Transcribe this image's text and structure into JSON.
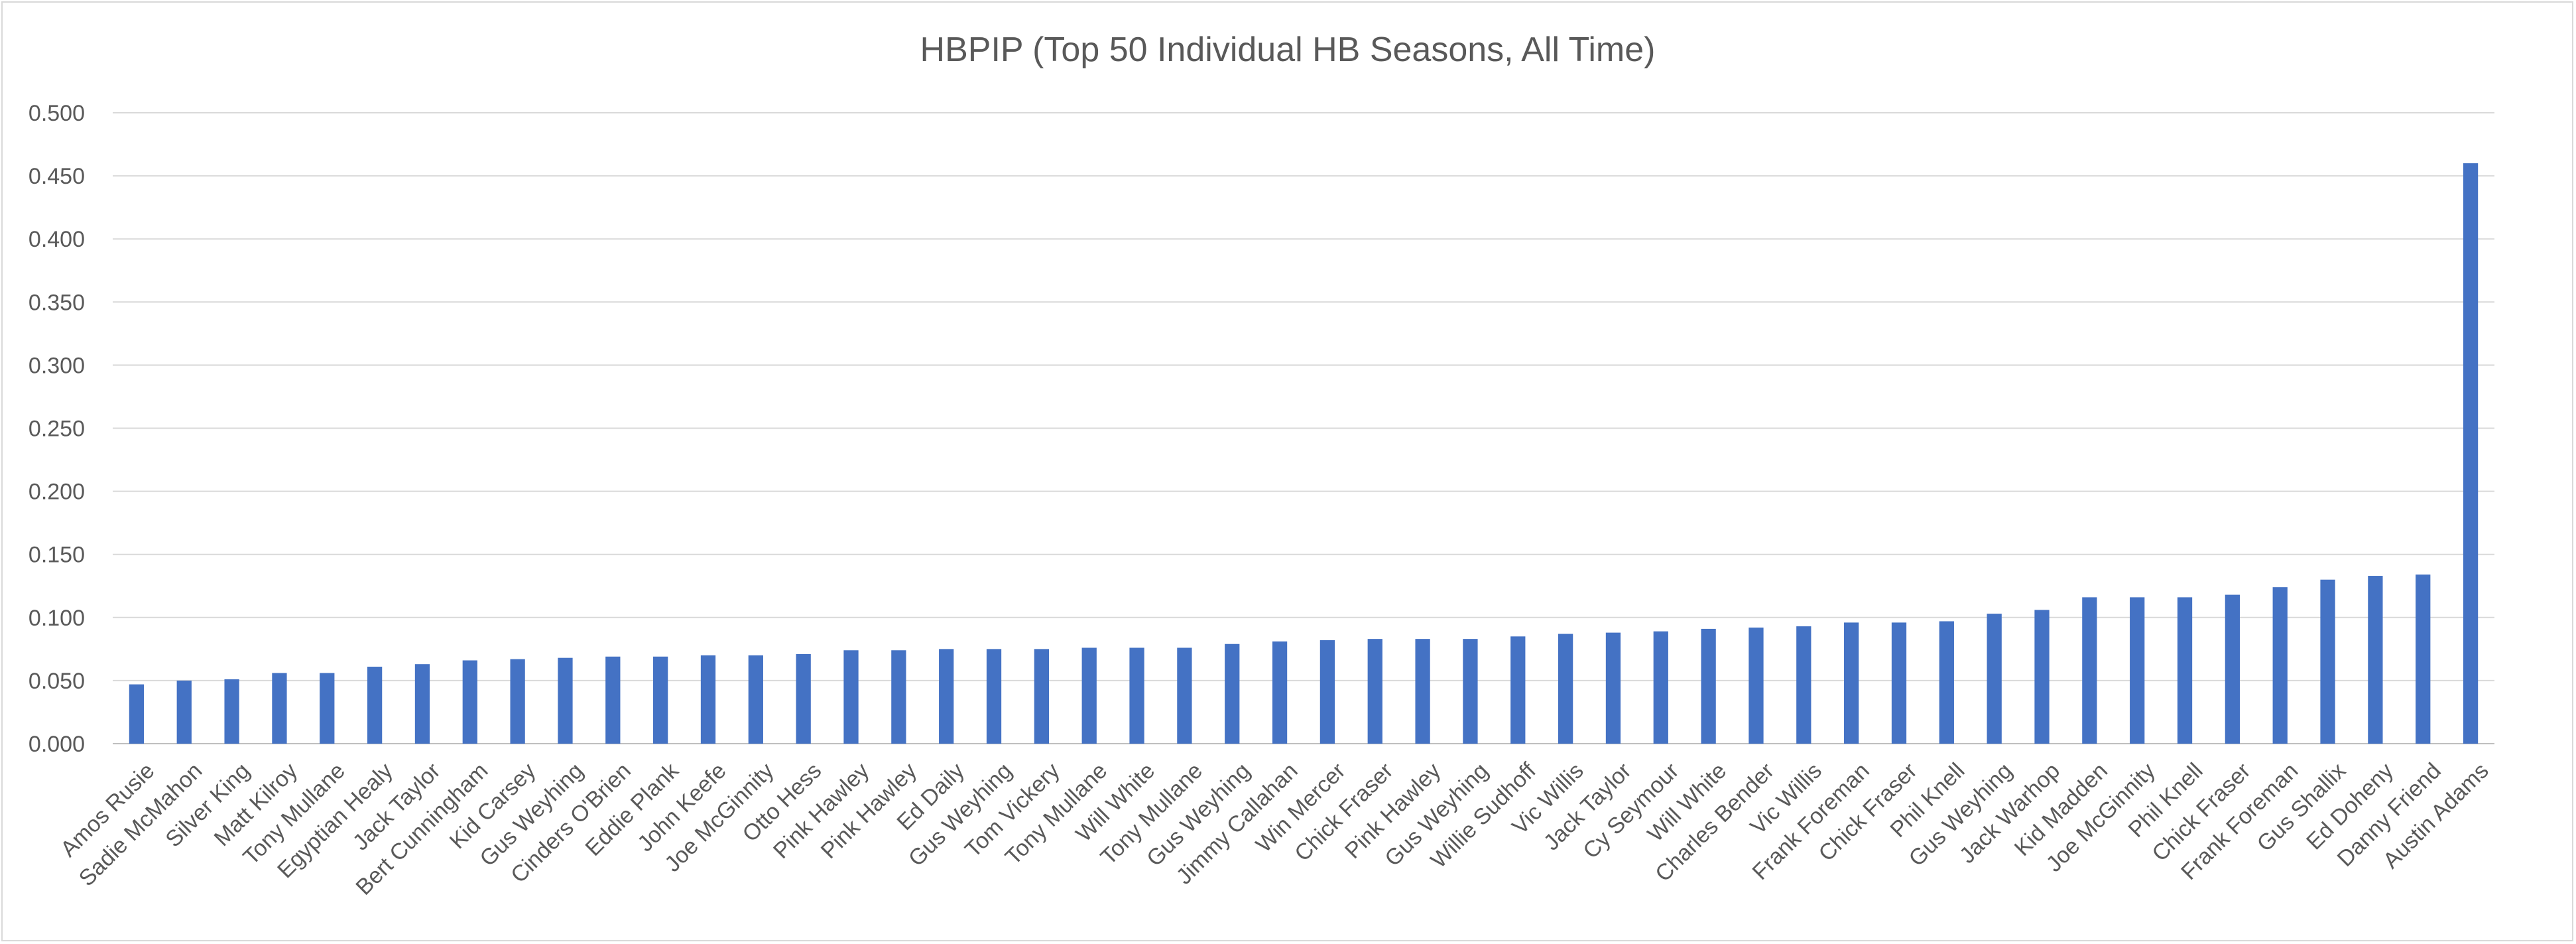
{
  "chart_data": {
    "type": "bar",
    "title": "HBPIP (Top 50 Individual HB Seasons, All Time)",
    "xlabel": "",
    "ylabel": "",
    "ylim": [
      0,
      0.5
    ],
    "yticks": [
      "0.000",
      "0.050",
      "0.100",
      "0.150",
      "0.200",
      "0.250",
      "0.300",
      "0.350",
      "0.400",
      "0.450",
      "0.500"
    ],
    "grid": true,
    "bar_color": "#4472c4",
    "categories": [
      "Amos Rusie",
      "Sadie McMahon",
      "Silver King",
      "Matt Kilroy",
      "Tony Mullane",
      "Egyptian Healy",
      "Jack Taylor",
      "Bert Cunningham",
      "Kid Carsey",
      "Gus Weyhing",
      "Cinders O'Brien",
      "Eddie Plank",
      "John Keefe",
      "Joe McGinnity",
      "Otto Hess",
      "Pink Hawley",
      "Pink Hawley",
      "Ed Daily",
      "Gus Weyhing",
      "Tom Vickery",
      "Tony Mullane",
      "Will White",
      "Tony Mullane",
      "Gus Weyhing",
      "Jimmy Callahan",
      "Win Mercer",
      "Chick Fraser",
      "Pink Hawley",
      "Gus Weyhing",
      "Willie Sudhoff",
      "Vic Willis",
      "Jack Taylor",
      "Cy Seymour",
      "Will White",
      "Charles Bender",
      "Vic Willis",
      "Frank Foreman",
      "Chick Fraser",
      "Phil Knell",
      "Gus Weyhing",
      "Jack Warhop",
      "Kid Madden",
      "Joe McGinnity",
      "Phil Knell",
      "Chick Fraser",
      "Frank Foreman",
      "Gus Shallix",
      "Ed Doheny",
      "Danny Friend",
      "Austin Adams"
    ],
    "values": [
      0.047,
      0.05,
      0.051,
      0.056,
      0.056,
      0.061,
      0.063,
      0.066,
      0.067,
      0.068,
      0.069,
      0.069,
      0.07,
      0.07,
      0.071,
      0.074,
      0.074,
      0.075,
      0.075,
      0.075,
      0.076,
      0.076,
      0.076,
      0.079,
      0.081,
      0.082,
      0.083,
      0.083,
      0.083,
      0.085,
      0.087,
      0.088,
      0.089,
      0.091,
      0.092,
      0.093,
      0.096,
      0.096,
      0.097,
      0.103,
      0.106,
      0.116,
      0.116,
      0.116,
      0.118,
      0.124,
      0.13,
      0.133,
      0.134,
      0.46
    ]
  }
}
